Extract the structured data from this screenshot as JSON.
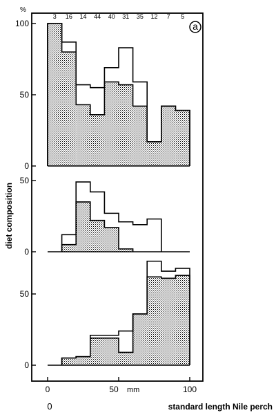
{
  "chart_data": {
    "type": "bar",
    "panel_label": "a",
    "y_unit": "%",
    "ylabel": "diet composition",
    "xlabel": "standard length Nile perch",
    "x_unit": "mm",
    "x_origin_label": "0",
    "x_ticks": [
      0,
      50,
      100
    ],
    "bin_edges": [
      0,
      10,
      20,
      30,
      40,
      50,
      60,
      70,
      80,
      90,
      100
    ],
    "sample_sizes": [
      "3",
      "16",
      "14",
      "44",
      "40",
      "31",
      "35",
      "12",
      "7",
      "5"
    ],
    "panels": [
      {
        "ylim": [
          0,
          100
        ],
        "y_ticks": [
          0,
          50,
          100
        ],
        "series": [
          {
            "style": "outline",
            "values": [
              100,
              87,
              57,
              55,
              69,
              83,
              59,
              17,
              42,
              39
            ]
          },
          {
            "style": "stippled",
            "values": [
              100,
              80,
              43,
              36,
              59,
              57,
              42,
              17,
              42,
              39
            ]
          }
        ]
      },
      {
        "ylim": [
          0,
          50
        ],
        "y_ticks": [
          0,
          50
        ],
        "series": [
          {
            "style": "outline",
            "values": [
              null,
              12,
              49,
              42,
              27,
              21,
              19,
              23,
              null,
              null
            ]
          },
          {
            "style": "stippled",
            "values": [
              null,
              5,
              35,
              22,
              17,
              2,
              null,
              null,
              null,
              null
            ]
          }
        ]
      },
      {
        "ylim": [
          0,
          75
        ],
        "y_ticks": [
          0,
          50
        ],
        "series": [
          {
            "style": "outline",
            "values": [
              null,
              5,
              6,
              21,
              21,
              24,
              36,
              73,
              66,
              68
            ]
          },
          {
            "style": "stippled",
            "values": [
              null,
              5,
              6,
              19,
              19,
              9,
              36,
              62,
              61,
              63
            ]
          }
        ]
      }
    ]
  }
}
